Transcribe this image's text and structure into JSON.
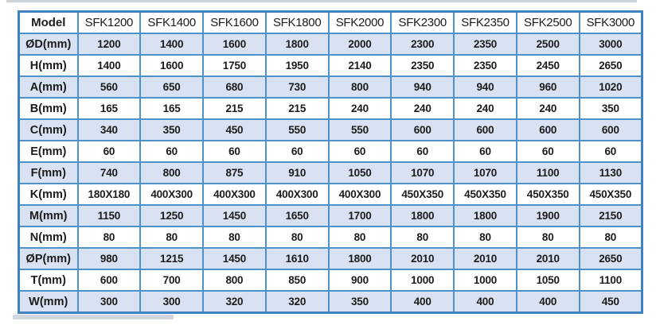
{
  "decor": {
    "top_strip_color": "#cdd1d6",
    "bottom_strip_color": "#c7cdd9"
  },
  "table": {
    "colors": {
      "border": "#4e92cc",
      "outer_border": "#3e82bf",
      "shaded_row": "#d9e2f2",
      "text": "#1b1b1b"
    },
    "columns": [
      "Model",
      "SFK1200",
      "SFK1400",
      "SFK1600",
      "SFK1800",
      "SFK2000",
      "SFK2300",
      "SFK2350",
      "SFK2500",
      "SFK3000"
    ],
    "rows": [
      {
        "label": "ØD(mm)",
        "values": [
          "1200",
          "1400",
          "1600",
          "1800",
          "2000",
          "2300",
          "2350",
          "2500",
          "3000"
        ]
      },
      {
        "label": "H(mm)",
        "values": [
          "1400",
          "1600",
          "1750",
          "1950",
          "2140",
          "2350",
          "2350",
          "2450",
          "2650"
        ]
      },
      {
        "label": "A(mm)",
        "values": [
          "560",
          "650",
          "680",
          "730",
          "800",
          "940",
          "940",
          "960",
          "1020"
        ]
      },
      {
        "label": "B(mm)",
        "values": [
          "165",
          "165",
          "215",
          "215",
          "240",
          "240",
          "240",
          "240",
          "350"
        ]
      },
      {
        "label": "C(mm)",
        "values": [
          "340",
          "350",
          "450",
          "550",
          "550",
          "600",
          "600",
          "600",
          "600"
        ]
      },
      {
        "label": "E(mm)",
        "values": [
          "60",
          "60",
          "60",
          "60",
          "60",
          "60",
          "60",
          "60",
          "60"
        ]
      },
      {
        "label": "F(mm)",
        "values": [
          "740",
          "800",
          "875",
          "910",
          "1050",
          "1070",
          "1070",
          "1100",
          "1130"
        ]
      },
      {
        "label": "K(mm)",
        "values": [
          "180X180",
          "400X300",
          "400X300",
          "400X300",
          "400X300",
          "450X350",
          "450X350",
          "450X350",
          "450X350"
        ]
      },
      {
        "label": "M(mm)",
        "values": [
          "1150",
          "1250",
          "1450",
          "1650",
          "1700",
          "1800",
          "1800",
          "1900",
          "2150"
        ]
      },
      {
        "label": "N(mm)",
        "values": [
          "80",
          "80",
          "80",
          "80",
          "80",
          "80",
          "80",
          "80",
          "80"
        ]
      },
      {
        "label": "ØP(mm)",
        "values": [
          "980",
          "1215",
          "1450",
          "1610",
          "1800",
          "2010",
          "2010",
          "2010",
          "2650"
        ]
      },
      {
        "label": "T(mm)",
        "values": [
          "600",
          "700",
          "800",
          "850",
          "900",
          "1000",
          "1000",
          "1050",
          "1100"
        ]
      },
      {
        "label": "W(mm)",
        "values": [
          "300",
          "300",
          "320",
          "320",
          "350",
          "400",
          "400",
          "400",
          "450"
        ]
      }
    ]
  }
}
